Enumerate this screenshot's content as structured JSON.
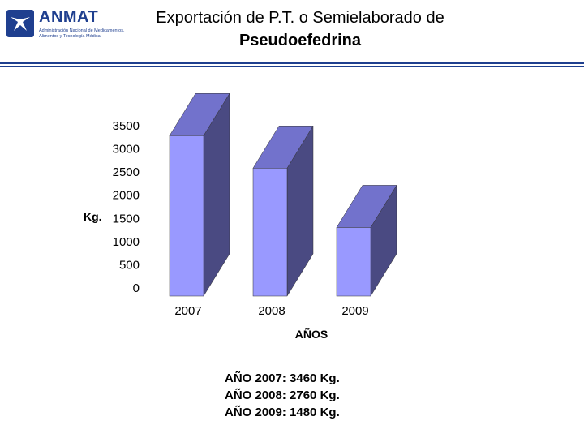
{
  "header": {
    "logo_name": "ANMAT",
    "logo_subtitle": "Administración Nacional de Medicamentos, Alimentos y Tecnología Médica",
    "title_line1": "Exportación de P.T. o Semielaborado de",
    "title_line2": "Pseudoefedrina",
    "brand_color": "#1f3f8f"
  },
  "chart_data": {
    "type": "bar",
    "categories": [
      "2007",
      "2008",
      "2009"
    ],
    "values": [
      3460,
      2760,
      1480
    ],
    "title": "",
    "xlabel": "AÑOS",
    "ylabel": "Kg.",
    "ylim": [
      0,
      3500
    ],
    "yticks": [
      "0",
      "500",
      "1000",
      "1500",
      "2000",
      "2500",
      "3000",
      "3500"
    ],
    "grid": false,
    "legend": "none",
    "bar_colors": {
      "front": "#9999ff",
      "side": "#4a4a82",
      "top": "#7272cc"
    }
  },
  "notes": [
    "AÑO 2007: 3460 Kg.",
    "AÑO 2008: 2760 Kg.",
    "AÑO 2009: 1480 Kg."
  ]
}
